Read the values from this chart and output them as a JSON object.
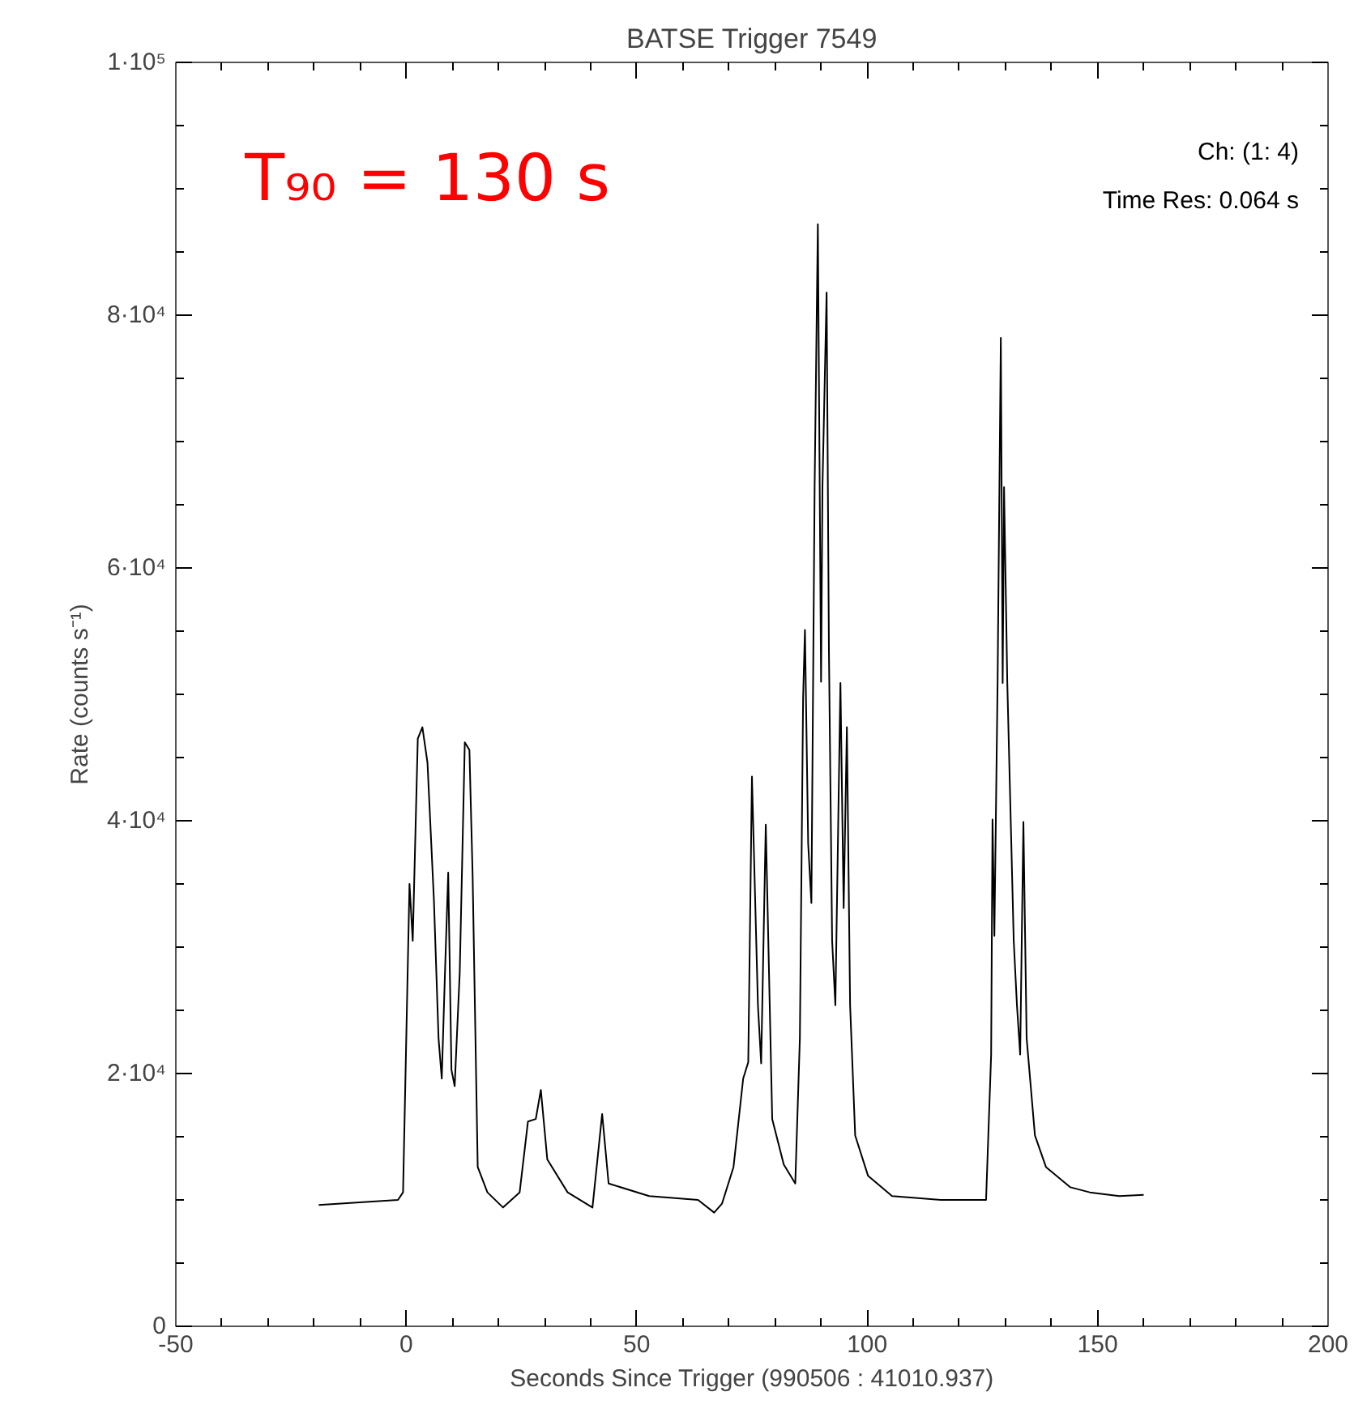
{
  "chart_data": {
    "type": "line",
    "title": "BATSE Trigger 7549",
    "xlabel": "Seconds Since Trigger (990506 : 41010.937)",
    "ylabel": "Rate (counts s⁻¹)",
    "annotations": [
      "T₉₀ = 130 s",
      "Ch: (1: 4)",
      "Time Res: 0.064 s"
    ],
    "xlim": [
      -50,
      200
    ],
    "xticks": [
      -50,
      0,
      50,
      100,
      150,
      200
    ],
    "ylim": [
      0,
      100000
    ],
    "yticks": [
      0,
      {
        "value": 20000,
        "label": "2·10⁴"
      },
      {
        "value": 40000,
        "label": "4·10⁴"
      },
      {
        "value": 60000,
        "label": "6·10⁴"
      },
      {
        "value": 80000,
        "label": "8·10⁴"
      },
      {
        "value": 100000,
        "label": "1·10⁵"
      }
    ],
    "grid": false,
    "marker": "none",
    "line_style": "solid",
    "series": [
      {
        "color": "#000000",
        "x": [
          -19,
          -1.8,
          -0.7,
          0.7,
          1.4,
          2.5,
          3.5,
          4.6,
          6,
          7,
          7.7,
          8.4,
          9.1,
          9.8,
          10.5,
          11.6,
          12.7,
          13.7,
          14.4,
          15.5,
          17.6,
          21,
          24.6,
          26.4,
          28.1,
          29.2,
          30.6,
          35,
          40.4,
          42.5,
          43.9,
          52.7,
          63.3,
          66.8,
          68.5,
          71,
          73.1,
          74.2,
          75,
          76.3,
          77,
          78,
          79.4,
          81.9,
          84.4,
          85.4,
          86.1,
          86.5,
          87.2,
          87.9,
          88.6,
          89.3,
          90,
          90.3,
          91.2,
          91.7,
          92.4,
          93.1,
          94.2,
          94.9,
          95.6,
          96.3,
          97.4,
          100.2,
          105.4,
          116,
          125.8,
          126.9,
          127.2,
          127.6,
          128.3,
          129,
          129.4,
          129.7,
          130.4,
          131.8,
          132.5,
          133.2,
          133.9,
          134.6,
          136.4,
          138.8,
          144.1,
          148.3,
          154.7,
          160
        ],
        "values": [
          9600,
          10000,
          10600,
          35000,
          30500,
          46500,
          47400,
          44600,
          33700,
          22800,
          19600,
          28000,
          35900,
          20300,
          19000,
          28000,
          46200,
          45600,
          35600,
          12600,
          10600,
          9400,
          10600,
          16200,
          16400,
          18700,
          13200,
          10600,
          9400,
          16800,
          11300,
          10300,
          10000,
          9000,
          9700,
          12600,
          19600,
          20900,
          43500,
          25400,
          20800,
          39700,
          16400,
          12800,
          11300,
          22800,
          49700,
          55100,
          38200,
          33500,
          66400,
          87200,
          51000,
          66400,
          81800,
          53600,
          30500,
          25400,
          50900,
          33100,
          47400,
          25400,
          15100,
          11900,
          10300,
          10000,
          10000,
          21500,
          40100,
          30900,
          51000,
          78200,
          50900,
          66400,
          51000,
          30500,
          25400,
          21500,
          39900,
          22800,
          15100,
          12600,
          11000,
          10600,
          10300,
          10400
        ]
      }
    ]
  }
}
